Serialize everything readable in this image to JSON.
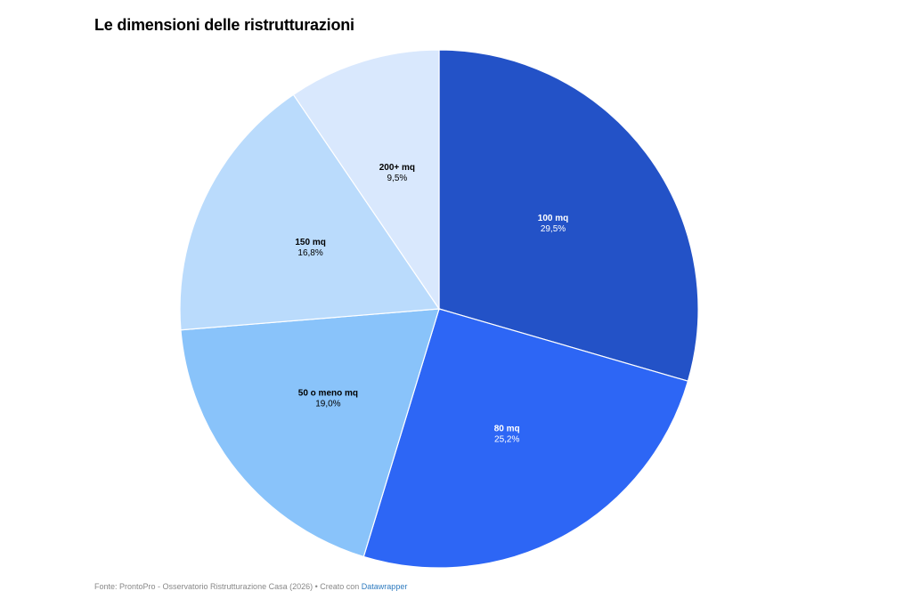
{
  "chart_data": {
    "type": "pie",
    "title": "Le dimensioni delle ristrutturazioni",
    "slices": [
      {
        "label": "100 mq",
        "value": 29.5,
        "display": "29,5%",
        "color": "#2352c7",
        "text_color": "#ffffff"
      },
      {
        "label": "80 mq",
        "value": 25.2,
        "display": "25,2%",
        "color": "#2d66f5",
        "text_color": "#ffffff"
      },
      {
        "label": "50 o meno mq",
        "value": 19.0,
        "display": "19,0%",
        "color": "#89c3fa",
        "text_color": "#000000"
      },
      {
        "label": "150 mq",
        "value": 16.8,
        "display": "16,8%",
        "color": "#badbfc",
        "text_color": "#000000"
      },
      {
        "label": "200+ mq",
        "value": 9.5,
        "display": "9,5%",
        "color": "#d9e8fd",
        "text_color": "#000000"
      }
    ]
  },
  "footer": {
    "source_text": "Fonte: ProntoPro - Osservatorio Ristrutturazione Casa (2026) • Creato con ",
    "credit_link": "Datawrapper"
  }
}
